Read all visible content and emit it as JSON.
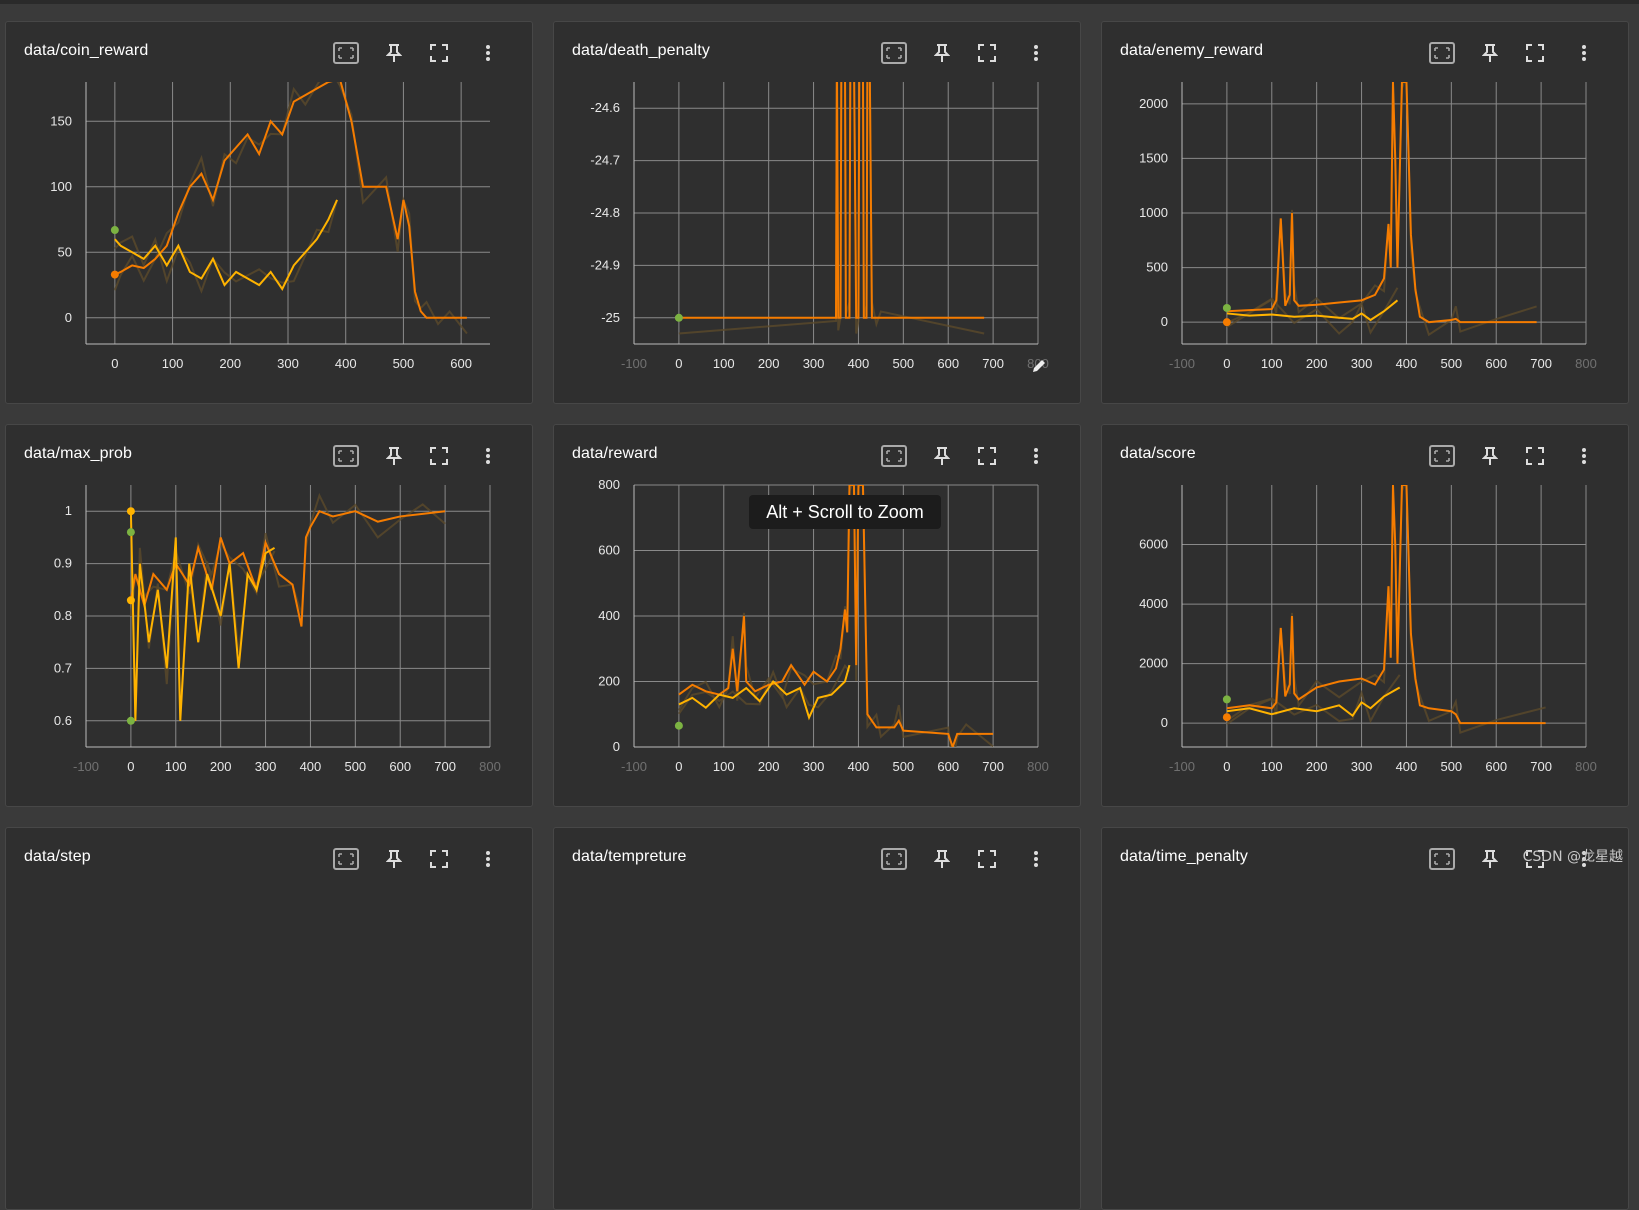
{
  "tooltip": "Alt + Scroll to Zoom",
  "watermark": "CSDN @龙星越",
  "icons": [
    "select-region-icon",
    "pin-icon",
    "fullscreen-icon",
    "more-vert-icon"
  ],
  "colors": {
    "orange": "#f57c00",
    "yellow": "#ffb300",
    "green": "#7cb342",
    "brown": "#5b4a2a",
    "grid": "#8a8a8a"
  },
  "chart_data": [
    {
      "id": "coin_reward",
      "title": "data/coin_reward",
      "type": "line",
      "xlim": [
        -50,
        650
      ],
      "ylim": [
        -20,
        180
      ],
      "xticks": [
        0,
        100,
        200,
        300,
        400,
        500,
        600
      ],
      "yticks": [
        0,
        50,
        100,
        150
      ],
      "xtick_labels": [
        "0",
        "100",
        "200",
        "300",
        "400",
        "500",
        "600"
      ],
      "ytick_labels": [
        "0",
        "50",
        "100",
        "150"
      ],
      "series": [
        {
          "name": "run-orange",
          "color": "#f57c00",
          "x": [
            0,
            10,
            30,
            50,
            70,
            90,
            110,
            130,
            150,
            170,
            190,
            210,
            230,
            250,
            270,
            290,
            310,
            330,
            350,
            370,
            390,
            410,
            430,
            450,
            470,
            490,
            500,
            510,
            520,
            530,
            540,
            560,
            580,
            610
          ],
          "y": [
            33,
            35,
            40,
            38,
            45,
            55,
            80,
            100,
            110,
            90,
            120,
            130,
            140,
            125,
            150,
            140,
            165,
            170,
            175,
            180,
            182,
            150,
            100,
            100,
            100,
            60,
            90,
            70,
            20,
            5,
            0,
            0,
            0,
            0
          ]
        },
        {
          "name": "run-yellow",
          "color": "#ffb300",
          "x": [
            0,
            10,
            30,
            50,
            70,
            90,
            110,
            130,
            150,
            170,
            190,
            210,
            230,
            250,
            270,
            290,
            310,
            330,
            350,
            370,
            385
          ],
          "y": [
            60,
            55,
            50,
            45,
            55,
            40,
            55,
            35,
            30,
            45,
            25,
            35,
            30,
            25,
            35,
            22,
            40,
            50,
            60,
            75,
            90
          ]
        }
      ],
      "markers": [
        {
          "x": 0,
          "y": 67,
          "color": "#7cb342"
        },
        {
          "x": 0,
          "y": 33,
          "color": "#f57c00"
        }
      ]
    },
    {
      "id": "death_penalty",
      "title": "data/death_penalty",
      "type": "line",
      "xlim": [
        -100,
        800
      ],
      "ylim": [
        -25.05,
        -24.55
      ],
      "xticks": [
        -100,
        0,
        100,
        200,
        300,
        400,
        500,
        600,
        700,
        800
      ],
      "yticks": [
        -25,
        -24.9,
        -24.8,
        -24.7,
        -24.6
      ],
      "xtick_labels": [
        "-100",
        "0",
        "100",
        "200",
        "300",
        "400",
        "500",
        "600",
        "700",
        "800"
      ],
      "ytick_labels": [
        "-25",
        "-24.9",
        "-24.8",
        "-24.7",
        "-24.6"
      ],
      "series": [
        {
          "name": "run-orange",
          "color": "#f57c00",
          "x": [
            0,
            350,
            352,
            355,
            360,
            362,
            370,
            372,
            380,
            382,
            390,
            395,
            400,
            402,
            410,
            412,
            418,
            420,
            425,
            430,
            440,
            450,
            680
          ],
          "y": [
            -25,
            -25,
            -24.5,
            -25,
            -25,
            -24.5,
            -24.5,
            -25,
            -25,
            -24.5,
            -24.5,
            -25,
            -25,
            -24.5,
            -24.5,
            -25,
            -25,
            -24.5,
            -24.5,
            -25,
            -25,
            -25,
            -25
          ]
        }
      ],
      "markers": [
        {
          "x": 0,
          "y": -25,
          "color": "#7cb342"
        }
      ]
    },
    {
      "id": "enemy_reward",
      "title": "data/enemy_reward",
      "type": "line",
      "xlim": [
        -100,
        800
      ],
      "ylim": [
        -200,
        2200
      ],
      "xticks": [
        -100,
        0,
        100,
        200,
        300,
        400,
        500,
        600,
        700,
        800
      ],
      "yticks": [
        0,
        500,
        1000,
        1500,
        2000
      ],
      "xtick_labels": [
        "-100",
        "0",
        "100",
        "200",
        "300",
        "400",
        "500",
        "600",
        "700",
        "800"
      ],
      "ytick_labels": [
        "0",
        "500",
        "1000",
        "1500",
        "2000"
      ],
      "series": [
        {
          "name": "run-orange",
          "color": "#f57c00",
          "x": [
            0,
            50,
            100,
            110,
            120,
            130,
            140,
            145,
            150,
            160,
            200,
            250,
            300,
            330,
            350,
            360,
            365,
            370,
            375,
            380,
            390,
            400,
            410,
            420,
            430,
            450,
            500,
            510,
            520,
            600,
            690
          ],
          "y": [
            100,
            110,
            120,
            200,
            950,
            150,
            250,
            1000,
            200,
            150,
            160,
            180,
            200,
            250,
            400,
            900,
            500,
            2200,
            1500,
            500,
            2200,
            2200,
            800,
            300,
            50,
            0,
            20,
            30,
            0,
            0,
            0
          ]
        },
        {
          "name": "run-yellow",
          "color": "#ffb300",
          "x": [
            0,
            50,
            100,
            150,
            200,
            250,
            280,
            300,
            320,
            350,
            380
          ],
          "y": [
            80,
            60,
            70,
            50,
            60,
            40,
            30,
            80,
            20,
            100,
            200
          ]
        }
      ],
      "markers": [
        {
          "x": 0,
          "y": 130,
          "color": "#7cb342"
        },
        {
          "x": 0,
          "y": 0,
          "color": "#f57c00"
        }
      ]
    },
    {
      "id": "max_prob",
      "title": "data/max_prob",
      "type": "line",
      "xlim": [
        -100,
        800
      ],
      "ylim": [
        0.55,
        1.05
      ],
      "xticks": [
        -100,
        0,
        100,
        200,
        300,
        400,
        500,
        600,
        700,
        800
      ],
      "yticks": [
        0.6,
        0.7,
        0.8,
        0.9,
        1
      ],
      "xtick_labels": [
        "-100",
        "0",
        "100",
        "200",
        "300",
        "400",
        "500",
        "600",
        "700",
        "800"
      ],
      "ytick_labels": [
        "0.6",
        "0.7",
        "0.8",
        "0.9",
        "1"
      ],
      "series": [
        {
          "name": "run-orange",
          "color": "#f57c00",
          "x": [
            0,
            10,
            30,
            50,
            80,
            100,
            130,
            150,
            180,
            200,
            220,
            250,
            280,
            300,
            330,
            360,
            380,
            390,
            400,
            420,
            450,
            500,
            550,
            600,
            650,
            700
          ],
          "y": [
            0.83,
            0.88,
            0.82,
            0.88,
            0.85,
            0.9,
            0.86,
            0.93,
            0.85,
            0.95,
            0.9,
            0.92,
            0.85,
            0.94,
            0.88,
            0.86,
            0.78,
            0.95,
            0.97,
            1.0,
            0.99,
            1.0,
            0.98,
            0.99,
            0.995,
            1.0
          ]
        },
        {
          "name": "run-yellow",
          "color": "#ffb300",
          "x": [
            0,
            10,
            20,
            40,
            60,
            80,
            100,
            110,
            130,
            150,
            170,
            200,
            220,
            240,
            260,
            280,
            300,
            320
          ],
          "y": [
            1.0,
            0.6,
            0.9,
            0.75,
            0.85,
            0.7,
            0.95,
            0.6,
            0.9,
            0.75,
            0.88,
            0.8,
            0.9,
            0.7,
            0.88,
            0.85,
            0.92,
            0.93
          ]
        }
      ],
      "markers": [
        {
          "x": 0,
          "y": 1.0,
          "color": "#ffb300"
        },
        {
          "x": 0,
          "y": 0.96,
          "color": "#7cb342"
        },
        {
          "x": 0,
          "y": 0.83,
          "color": "#ffb300"
        },
        {
          "x": 0,
          "y": 0.6,
          "color": "#7cb342"
        }
      ]
    },
    {
      "id": "reward",
      "title": "data/reward",
      "type": "line",
      "xlim": [
        -100,
        800
      ],
      "ylim": [
        0,
        800
      ],
      "xticks": [
        -100,
        0,
        100,
        200,
        300,
        400,
        500,
        600,
        700,
        800
      ],
      "yticks": [
        0,
        200,
        400,
        600,
        800
      ],
      "xtick_labels": [
        "-100",
        "0",
        "100",
        "200",
        "300",
        "400",
        "500",
        "600",
        "700",
        "800"
      ],
      "ytick_labels": [
        "0",
        "200",
        "400",
        "600",
        "800"
      ],
      "series": [
        {
          "name": "run-orange",
          "color": "#f57c00",
          "x": [
            0,
            30,
            60,
            90,
            110,
            120,
            130,
            145,
            150,
            170,
            200,
            230,
            250,
            280,
            300,
            330,
            350,
            360,
            370,
            375,
            380,
            390,
            395,
            400,
            410,
            420,
            430,
            440,
            450,
            480,
            490,
            500,
            600,
            610,
            620,
            640,
            700
          ],
          "y": [
            160,
            190,
            170,
            160,
            180,
            300,
            170,
            400,
            200,
            170,
            190,
            200,
            250,
            190,
            230,
            200,
            240,
            300,
            420,
            350,
            800,
            800,
            250,
            800,
            800,
            100,
            80,
            60,
            60,
            60,
            80,
            50,
            40,
            0,
            40,
            40,
            40
          ]
        },
        {
          "name": "run-yellow",
          "color": "#ffb300",
          "x": [
            0,
            30,
            60,
            90,
            120,
            150,
            180,
            210,
            240,
            270,
            290,
            310,
            340,
            370,
            380
          ],
          "y": [
            130,
            150,
            120,
            160,
            150,
            180,
            140,
            200,
            160,
            180,
            90,
            150,
            160,
            200,
            250
          ]
        }
      ],
      "markers": [
        {
          "x": 0,
          "y": 65,
          "color": "#7cb342"
        }
      ]
    },
    {
      "id": "score",
      "title": "data/score",
      "type": "line",
      "xlim": [
        -100,
        800
      ],
      "ylim": [
        -800,
        8000
      ],
      "xticks": [
        -100,
        0,
        100,
        200,
        300,
        400,
        500,
        600,
        700,
        800
      ],
      "yticks": [
        0,
        2000,
        4000,
        6000
      ],
      "xtick_labels": [
        "-100",
        "0",
        "100",
        "200",
        "300",
        "400",
        "500",
        "600",
        "700",
        "800"
      ],
      "ytick_labels": [
        "0",
        "2000",
        "4000",
        "6000"
      ],
      "series": [
        {
          "name": "run-orange",
          "color": "#f57c00",
          "x": [
            0,
            50,
            100,
            110,
            120,
            130,
            140,
            145,
            150,
            160,
            200,
            250,
            300,
            330,
            350,
            360,
            365,
            370,
            375,
            380,
            390,
            400,
            410,
            420,
            430,
            450,
            500,
            510,
            520,
            600,
            710
          ],
          "y": [
            500,
            600,
            500,
            700,
            3200,
            900,
            1300,
            3600,
            1000,
            800,
            1200,
            1400,
            1500,
            1300,
            1800,
            4600,
            2200,
            8000,
            6000,
            2000,
            8000,
            8000,
            3000,
            1500,
            600,
            500,
            400,
            300,
            0,
            0,
            0
          ]
        },
        {
          "name": "run-yellow",
          "color": "#ffb300",
          "x": [
            0,
            50,
            100,
            150,
            200,
            250,
            280,
            300,
            320,
            350,
            385
          ],
          "y": [
            400,
            500,
            300,
            500,
            400,
            600,
            250,
            700,
            500,
            900,
            1200
          ]
        }
      ],
      "markers": [
        {
          "x": 0,
          "y": 800,
          "color": "#7cb342"
        },
        {
          "x": 0,
          "y": 200,
          "color": "#f57c00"
        }
      ]
    },
    {
      "id": "step",
      "title": "data/step",
      "type": "line",
      "series": []
    },
    {
      "id": "tempreture",
      "title": "data/tempreture",
      "type": "line",
      "series": []
    },
    {
      "id": "time_penalty",
      "title": "data/time_penalty",
      "type": "line",
      "series": []
    }
  ]
}
